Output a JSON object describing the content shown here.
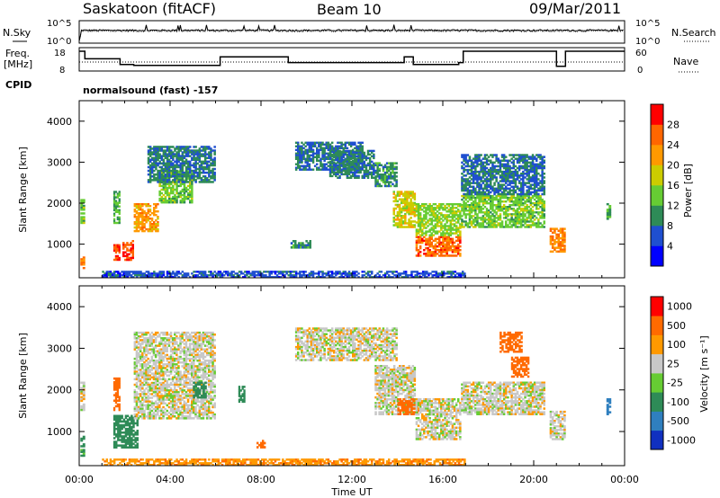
{
  "header": {
    "station": "Saskatoon (fitACF)",
    "beam": "Beam 10",
    "date": "09/Mar/2011"
  },
  "noise_panel": {
    "left_label": "N.Sky",
    "left_ticks": [
      "10^5",
      "10^0"
    ],
    "right_label": "N.Search",
    "right_ticks": [
      "10^5",
      "10^0"
    ]
  },
  "freq_panel": {
    "left_label_line1": "Freq.",
    "left_label_line2": "[MHz]",
    "left_ticks": [
      "18",
      "8"
    ],
    "right_label": "Nave",
    "right_ticks": [
      "60",
      "0"
    ]
  },
  "cpid": {
    "label": "CPID",
    "value": "normalsound (fast) -157"
  },
  "time_axis": {
    "ticks": [
      "00:00",
      "04:00",
      "08:00",
      "12:00",
      "16:00",
      "20:00",
      "00:00"
    ],
    "title": "Time UT"
  },
  "power_panel": {
    "ylabel": "Slant Range [km]",
    "yticks": [
      "4000",
      "3000",
      "2000",
      "1000"
    ],
    "colorbar_label": "Power [dB]",
    "colorbar_ticks": [
      "28",
      "24",
      "20",
      "16",
      "12",
      "8",
      "4"
    ],
    "colors": [
      "#0000ff",
      "#1f4fd0",
      "#2e8b57",
      "#66cc33",
      "#cccc00",
      "#ff9900",
      "#ff6600",
      "#ff0000"
    ]
  },
  "velocity_panel": {
    "ylabel": "Slant Range [km]",
    "yticks": [
      "4000",
      "3000",
      "2000",
      "1000"
    ],
    "colorbar_label": "Velocity [m s⁻¹]",
    "colorbar_ticks": [
      "1000",
      "500",
      "100",
      "25",
      "-25",
      "-100",
      "-500",
      "-1000"
    ],
    "colors": [
      "#1030c0",
      "#2f7fbf",
      "#2e8b57",
      "#66cc33",
      "#c8c8c8",
      "#ff9900",
      "#ff6a00",
      "#ff0000"
    ]
  },
  "chart_data": [
    {
      "type": "line",
      "name": "noise",
      "x_hours": [
        0,
        0.1,
        1.6,
        1.65,
        3,
        6,
        9,
        12,
        14.5,
        16.5,
        17,
        20,
        24
      ],
      "sky_log10": [
        0.5,
        2.8,
        2.8,
        3.2,
        3.0,
        3.1,
        2.9,
        3.0,
        3.1,
        3.0,
        3.4,
        3.2,
        3.0
      ],
      "search_log10": [
        0.5,
        2.6,
        2.6,
        3.0,
        2.8,
        2.9,
        2.7,
        2.8,
        2.9,
        2.8,
        3.2,
        3.0,
        2.8
      ],
      "ylim": [
        0,
        5
      ]
    },
    {
      "type": "line",
      "name": "frequency",
      "x_hours": [
        0,
        0.25,
        0.25,
        1.8,
        1.8,
        2.4,
        2.4,
        6.2,
        6.2,
        9.2,
        9.2,
        14.3,
        14.3,
        14.7,
        14.7,
        16.7,
        16.7,
        16.9,
        16.9,
        21.0,
        21.0,
        21.4,
        21.4,
        24
      ],
      "freq_mhz": [
        18,
        18,
        14,
        14,
        11,
        11,
        10.5,
        10.5,
        15,
        15,
        12,
        12,
        15,
        15,
        11,
        11,
        12,
        12,
        18,
        18,
        10,
        10,
        18,
        18
      ],
      "nave_level": 30,
      "ylim": [
        8,
        18
      ]
    },
    {
      "type": "heatmap",
      "title": "Power [dB]",
      "x_range_hours": [
        0,
        24
      ],
      "y_range_km": [
        180,
        4500
      ],
      "value_bounds": [
        0,
        32
      ],
      "regions": [
        {
          "x": [
            0.05,
            0.25
          ],
          "y": [
            400,
            700
          ],
          "v": 24
        },
        {
          "x": [
            0.05,
            0.25
          ],
          "y": [
            1500,
            2100
          ],
          "v": 14
        },
        {
          "x": [
            1.5,
            1.8
          ],
          "y": [
            600,
            1000
          ],
          "v": 28
        },
        {
          "x": [
            1.5,
            1.8
          ],
          "y": [
            1500,
            2300
          ],
          "v": 12
        },
        {
          "x": [
            1.9,
            2.4
          ],
          "y": [
            600,
            1100
          ],
          "v": 28
        },
        {
          "x": [
            2.4,
            3.5
          ],
          "y": [
            1300,
            2000
          ],
          "v": 22
        },
        {
          "x": [
            3.5,
            5.0
          ],
          "y": [
            2000,
            2800
          ],
          "v": 14
        },
        {
          "x": [
            3.0,
            6.0
          ],
          "y": [
            2500,
            3400
          ],
          "v": 9
        },
        {
          "x": [
            9.3,
            10.2
          ],
          "y": [
            900,
            1100
          ],
          "v": 10
        },
        {
          "x": [
            9.5,
            12.5
          ],
          "y": [
            2800,
            3500
          ],
          "v": 8
        },
        {
          "x": [
            11.0,
            13.0
          ],
          "y": [
            2600,
            3300
          ],
          "v": 9
        },
        {
          "x": [
            13.0,
            14.0
          ],
          "y": [
            2400,
            3000
          ],
          "v": 10
        },
        {
          "x": [
            13.8,
            14.8
          ],
          "y": [
            1400,
            2300
          ],
          "v": 18
        },
        {
          "x": [
            14.8,
            16.8
          ],
          "y": [
            700,
            1200
          ],
          "v": 26
        },
        {
          "x": [
            14.8,
            16.8
          ],
          "y": [
            1200,
            2000
          ],
          "v": 15
        },
        {
          "x": [
            16.8,
            20.5
          ],
          "y": [
            1400,
            2200
          ],
          "v": 14
        },
        {
          "x": [
            16.8,
            20.5
          ],
          "y": [
            2200,
            3200
          ],
          "v": 8
        },
        {
          "x": [
            20.7,
            21.4
          ],
          "y": [
            800,
            1400
          ],
          "v": 24
        },
        {
          "x": [
            23.2,
            23.4
          ],
          "y": [
            1600,
            2000
          ],
          "v": 12
        },
        {
          "x": [
            1.0,
            17.0
          ],
          "y": [
            180,
            350
          ],
          "v": 6
        }
      ]
    },
    {
      "type": "heatmap",
      "title": "Velocity [m s⁻¹]",
      "x_range_hours": [
        0,
        24
      ],
      "y_range_km": [
        180,
        4500
      ],
      "value_bounds": [
        -1000,
        1000
      ],
      "regions": [
        {
          "x": [
            0.05,
            0.25
          ],
          "y": [
            400,
            900
          ],
          "v": 120
        },
        {
          "x": [
            0.05,
            0.25
          ],
          "y": [
            1500,
            2200
          ],
          "v": 0
        },
        {
          "x": [
            1.5,
            2.6
          ],
          "y": [
            600,
            1400
          ],
          "v": 200
        },
        {
          "x": [
            1.5,
            1.8
          ],
          "y": [
            1500,
            2300
          ],
          "v": -150
        },
        {
          "x": [
            2.4,
            6.0
          ],
          "y": [
            1300,
            3400
          ],
          "v": 0
        },
        {
          "x": [
            5.0,
            5.6
          ],
          "y": [
            1800,
            2200
          ],
          "v": 200
        },
        {
          "x": [
            7.0,
            7.3
          ],
          "y": [
            1700,
            2100
          ],
          "v": 400
        },
        {
          "x": [
            7.8,
            8.2
          ],
          "y": [
            600,
            800
          ],
          "v": -200
        },
        {
          "x": [
            9.5,
            14.0
          ],
          "y": [
            2700,
            3500
          ],
          "v": 0
        },
        {
          "x": [
            13.0,
            14.8
          ],
          "y": [
            1400,
            2600
          ],
          "v": 0
        },
        {
          "x": [
            14.0,
            15.0
          ],
          "y": [
            1400,
            1800
          ],
          "v": -300
        },
        {
          "x": [
            14.8,
            16.8
          ],
          "y": [
            800,
            1800
          ],
          "v": 0
        },
        {
          "x": [
            16.8,
            20.5
          ],
          "y": [
            1400,
            2200
          ],
          "v": 0
        },
        {
          "x": [
            18.5,
            19.5
          ],
          "y": [
            2900,
            3400
          ],
          "v": -300
        },
        {
          "x": [
            19.0,
            19.8
          ],
          "y": [
            2300,
            2800
          ],
          "v": -150
        },
        {
          "x": [
            20.7,
            21.4
          ],
          "y": [
            800,
            1500
          ],
          "v": 0
        },
        {
          "x": [
            23.2,
            23.4
          ],
          "y": [
            1400,
            1800
          ],
          "v": 600
        },
        {
          "x": [
            1.0,
            17.0
          ],
          "y": [
            180,
            350
          ],
          "v": -80
        }
      ]
    }
  ]
}
